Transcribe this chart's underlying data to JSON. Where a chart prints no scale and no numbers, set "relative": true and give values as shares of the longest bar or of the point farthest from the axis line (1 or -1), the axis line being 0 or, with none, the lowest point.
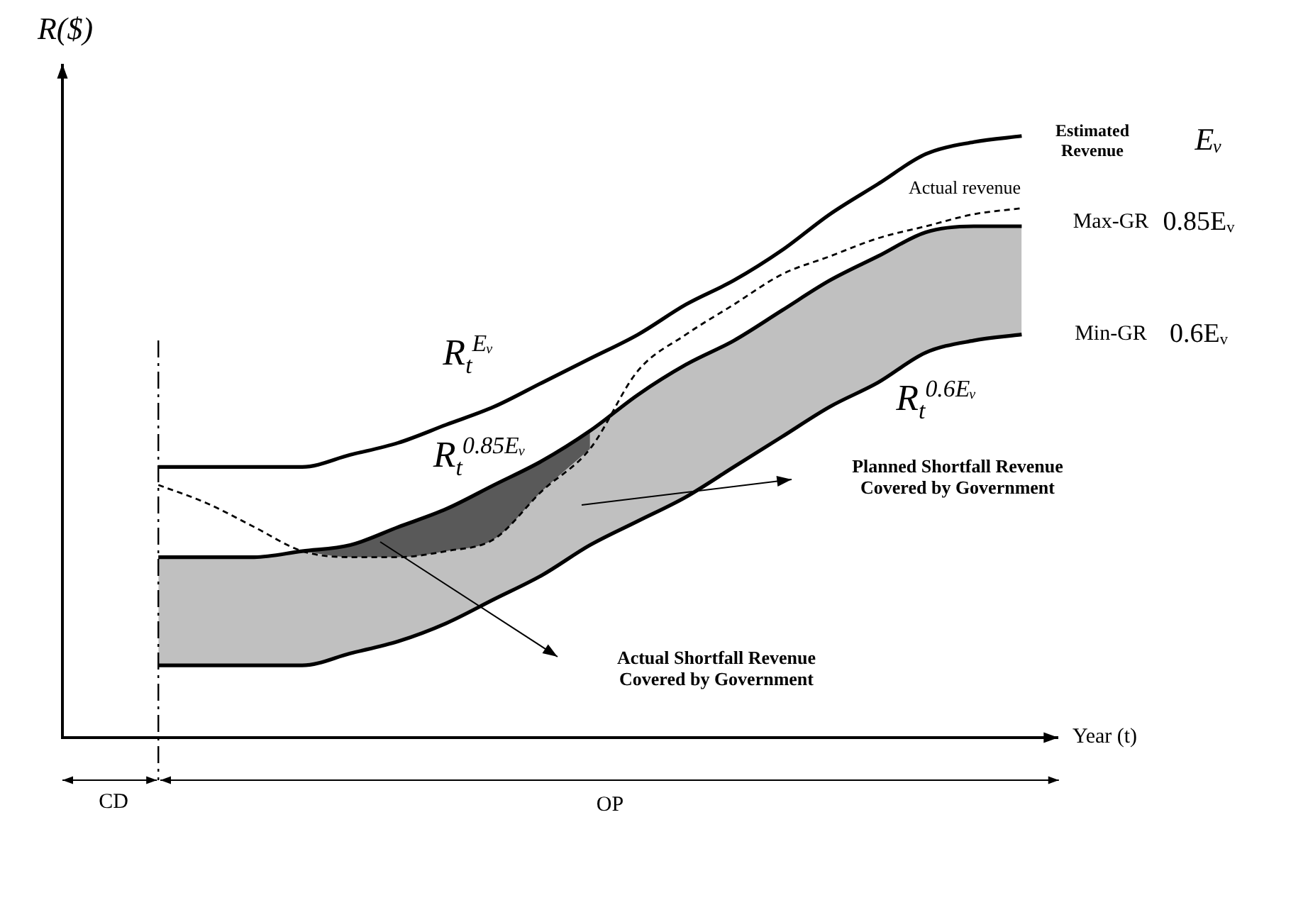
{
  "chart_data": {
    "type": "line",
    "relative": true,
    "marker": "none",
    "xlabel": "Year (t)",
    "ylabel": "R($)",
    "categories": [
      null,
      null,
      null,
      null,
      null,
      null,
      null,
      null,
      null,
      null,
      null,
      null,
      null,
      null,
      null,
      null,
      null,
      null,
      null,
      null,
      null,
      null
    ],
    "series": [
      {
        "name": "Estimated Revenue",
        "color": "#000000",
        "line_style": "solid",
        "values": [
          null,
          null,
          0.45,
          0.45,
          0.45,
          0.45,
          0.47,
          0.49,
          0.52,
          0.55,
          0.59,
          0.63,
          0.67,
          0.72,
          0.76,
          0.81,
          0.87,
          0.92,
          0.97,
          0.99,
          1,
          null
        ]
      },
      {
        "name": "Max-GR",
        "color": "#000000",
        "line_style": "solid",
        "values": [
          null,
          null,
          0.3,
          0.3,
          0.3,
          0.31,
          0.32,
          0.35,
          0.38,
          0.42,
          0.46,
          0.51,
          0.57,
          0.62,
          0.66,
          0.71,
          0.76,
          0.8,
          0.84,
          0.85,
          0.85,
          null
        ],
        "lower": [
          null,
          null,
          0.12,
          0.12,
          0.12,
          0.12,
          0.14,
          0.16,
          0.19,
          0.23,
          0.27,
          0.32,
          0.36,
          0.4,
          0.45,
          0.5,
          0.55,
          0.59,
          0.64,
          0.66,
          0.67,
          null
        ],
        "upper": [
          null,
          null,
          0.3,
          0.3,
          0.3,
          0.31,
          0.32,
          0.35,
          0.38,
          0.42,
          0.46,
          0.51,
          0.57,
          0.62,
          0.66,
          0.71,
          0.76,
          0.8,
          0.84,
          0.85,
          0.85,
          null
        ]
      },
      {
        "name": "Min-GR",
        "color": "#000000",
        "line_style": "solid",
        "values": [
          null,
          null,
          0.12,
          0.12,
          0.12,
          0.12,
          0.14,
          0.16,
          0.19,
          0.23,
          0.27,
          0.32,
          0.36,
          0.4,
          0.45,
          0.5,
          0.55,
          0.59,
          0.64,
          0.66,
          0.67,
          null
        ]
      },
      {
        "name": "Actual revenue",
        "color": "#000000",
        "line_style": "dashed",
        "values": [
          null,
          null,
          0.42,
          0.39,
          0.35,
          0.31,
          0.3,
          0.3,
          0.31,
          0.33,
          0.41,
          0.48,
          0.61,
          0.67,
          0.72,
          0.77,
          0.8,
          0.83,
          0.85,
          0.87,
          0.88,
          null
        ],
        "lower": [
          null,
          null,
          null,
          null,
          null,
          0.31,
          0.3,
          0.3,
          0.31,
          0.33,
          0.41,
          0.48,
          null,
          null,
          null,
          null,
          null,
          null,
          null,
          null,
          null,
          null
        ],
        "upper": [
          null,
          null,
          null,
          null,
          null,
          0.31,
          0.32,
          0.35,
          0.38,
          0.42,
          0.46,
          0.51,
          null,
          null,
          null,
          null,
          null,
          null,
          null,
          null,
          null,
          null
        ]
      }
    ],
    "annotations": [
      "R$_{t}$$^{Eᵥ}$",
      "R$_{t}$$^{0.85Eᵥ}$",
      "R$_{t}$$^{0.6Eᵥ}$",
      "Eᵥ",
      "0.85Eᵥ",
      "0.6Eᵥ",
      "Planned Shortfall Revenue Covered by Government",
      "Actual Shortfall Revenue Covered by Government",
      "CD",
      "OP"
    ]
  }
}
